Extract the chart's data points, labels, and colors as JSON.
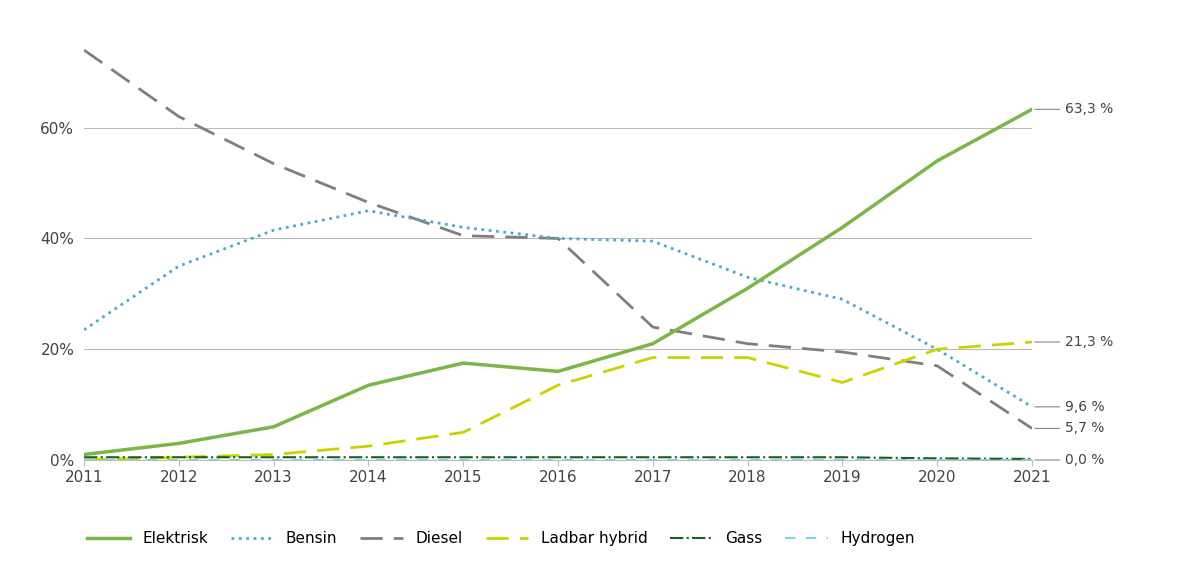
{
  "years": [
    2011,
    2012,
    2013,
    2014,
    2015,
    2016,
    2017,
    2018,
    2019,
    2020,
    2021
  ],
  "elektrisk": [
    1.0,
    3.0,
    6.0,
    13.5,
    17.5,
    16.0,
    21.0,
    31.0,
    42.0,
    54.0,
    63.3
  ],
  "bensin": [
    23.5,
    35.0,
    41.5,
    45.0,
    42.0,
    40.0,
    39.5,
    33.0,
    29.0,
    20.0,
    9.6
  ],
  "diesel": [
    74.0,
    62.0,
    53.5,
    46.5,
    40.5,
    40.0,
    24.0,
    21.0,
    19.5,
    17.0,
    5.7
  ],
  "ladbar_hybrid": [
    0.0,
    0.5,
    1.0,
    2.5,
    5.0,
    13.5,
    18.5,
    18.5,
    14.0,
    20.0,
    21.3
  ],
  "gass": [
    0.5,
    0.5,
    0.5,
    0.5,
    0.5,
    0.5,
    0.5,
    0.5,
    0.5,
    0.3,
    0.2
  ],
  "hydrogen": [
    0.0,
    0.0,
    0.0,
    0.0,
    0.0,
    0.0,
    0.0,
    0.0,
    0.0,
    0.0,
    0.0
  ],
  "colors": {
    "elektrisk": "#7ab648",
    "bensin": "#4bacc6",
    "diesel": "#7f7f7f",
    "ladbar_hybrid": "#c8d400",
    "gass": "#1a5e20",
    "hydrogen": "#7fd4e8"
  },
  "end_labels": [
    [
      "elektrisk",
      63.3,
      "63,3 %"
    ],
    [
      "ladbar_hybrid",
      21.3,
      "21,3 %"
    ],
    [
      "bensin",
      9.6,
      "9,6 %"
    ],
    [
      "diesel",
      5.7,
      "5,7 %"
    ],
    [
      "hydrogen",
      0.0,
      "0,0 %"
    ]
  ],
  "ylim": [
    0,
    80
  ],
  "yticks": [
    0,
    20,
    40,
    60
  ],
  "ytick_labels": [
    "0%",
    "20%",
    "40%",
    "60%"
  ],
  "background_color": "#ffffff"
}
